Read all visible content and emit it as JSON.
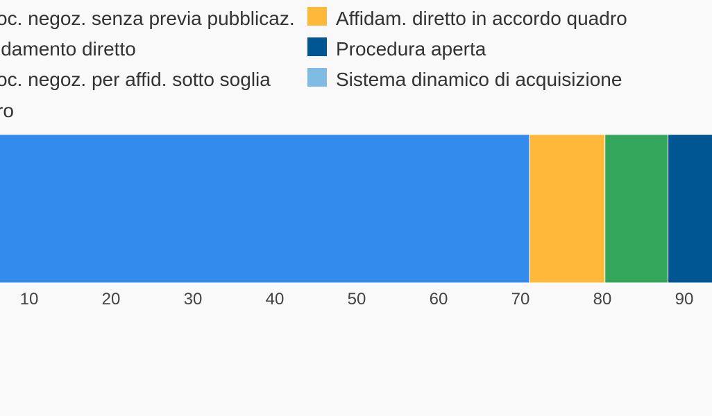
{
  "chart_data": {
    "type": "bar",
    "orientation": "horizontal-stacked",
    "title": "",
    "xlabel": "",
    "ylabel": "",
    "xlim": [
      0,
      100
    ],
    "x_ticks": [
      "10",
      "20",
      "30",
      "40",
      "50",
      "60",
      "70",
      "80",
      "90"
    ],
    "grid": false,
    "legend_position": "top",
    "legend": [
      {
        "label": "oc. negoz. senza previa pubblicaz.",
        "color": "#338bee",
        "column": 0
      },
      {
        "label": "idamento diretto",
        "color": "#ffb83a",
        "column": 0
      },
      {
        "label": "oc. negoz. per affid. sotto soglia",
        "color": "#33a65c",
        "column": 0
      },
      {
        "label": "ro",
        "color": "#8c8c8c",
        "column": 0
      },
      {
        "label": "Affidam. diretto in accordo quadro",
        "color": "#ffb83a",
        "column": 1
      },
      {
        "label": "Procedura aperta",
        "color": "#005693",
        "column": 1
      },
      {
        "label": "Sistema dinamico di acquisizione",
        "color": "#7fbbe3",
        "column": 1
      }
    ],
    "segments": [
      {
        "label": "oc. negoz. senza previa pubblicaz.",
        "value": 71.2,
        "color": "#338bee"
      },
      {
        "label": "idamento diretto",
        "value": 9.2,
        "color": "#ffb83a"
      },
      {
        "label": "oc. negoz. per affid. sotto soglia",
        "value": 7.7,
        "color": "#33a65c"
      },
      {
        "label": "Procedura aperta",
        "value": 5.6,
        "color": "#005693"
      }
    ]
  }
}
